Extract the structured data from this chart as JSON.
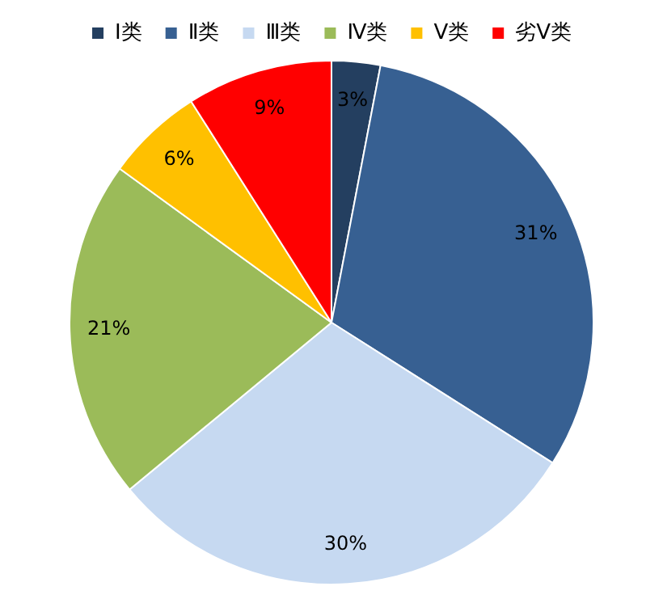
{
  "chart_data": {
    "type": "pie",
    "categories": [
      "Ⅰ类",
      "Ⅱ类",
      "Ⅲ类",
      "Ⅳ类",
      "Ⅴ类",
      "劣Ⅴ类"
    ],
    "values": [
      3,
      31,
      30,
      21,
      6,
      9
    ],
    "value_labels": [
      "3%",
      "31%",
      "30%",
      "21%",
      "6%",
      "9%"
    ],
    "colors": [
      "#243f60",
      "#376092",
      "#c6d9f1",
      "#9bbb59",
      "#ffc000",
      "#ff0000"
    ],
    "legend": "top"
  }
}
